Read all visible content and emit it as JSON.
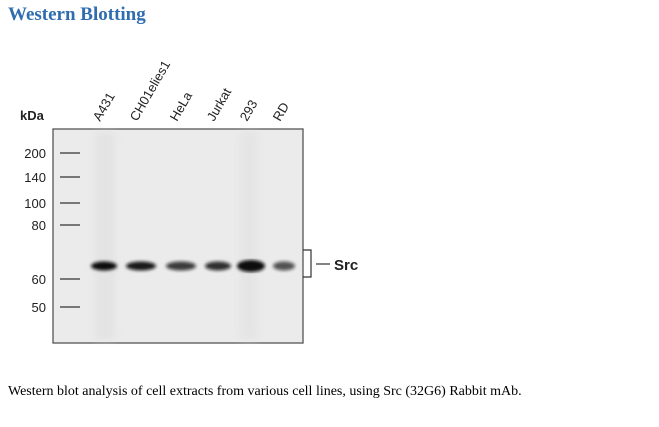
{
  "section_title": "Western Blotting",
  "blot": {
    "unit_label": "kDa",
    "lanes": [
      "A431",
      "CH01elies1",
      "HeLa",
      "Jurkat",
      "293",
      "RD"
    ],
    "markers": [
      "200",
      "140",
      "100",
      "80",
      "60",
      "50"
    ],
    "target_label": "Src"
  },
  "caption": "Western blot analysis of cell extracts from various cell lines, using Src (32G6) Rabbit mAb."
}
